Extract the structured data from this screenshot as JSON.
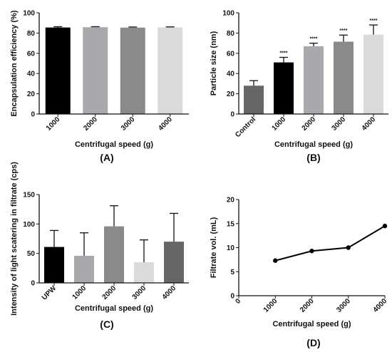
{
  "chart_data": [
    {
      "type": "bar",
      "panel_label": "(A)",
      "categories": [
        "1000",
        "2000",
        "3000",
        "4000"
      ],
      "values": [
        85.5,
        85.8,
        85.4,
        85.7
      ],
      "errors": [
        0.8,
        0.5,
        0.6,
        0.4
      ],
      "colors": [
        "#000000",
        "#a8a8ad",
        "#8a8a8a",
        "#dadada"
      ],
      "xlabel": "Centrifugal speed (g)",
      "ylabel": "Encapsulation efficiency (%)",
      "ylim": [
        0,
        100
      ],
      "yticks": [
        0,
        20,
        40,
        60,
        80,
        100
      ]
    },
    {
      "type": "bar",
      "panel_label": "(B)",
      "categories": [
        "Control",
        "1000",
        "2000",
        "3000",
        "4000"
      ],
      "values": [
        28,
        51,
        67,
        71.5,
        78.5
      ],
      "errors": [
        5,
        5,
        3,
        6.5,
        9.5
      ],
      "colors": [
        "#666666",
        "#000000",
        "#a8a8ad",
        "#8a8a8a",
        "#dadada"
      ],
      "annotations": [
        "",
        "****",
        "****",
        "****",
        "****"
      ],
      "xlabel": "Centrifugal speed (g)",
      "ylabel": "Particle size (nm)",
      "ylim": [
        0,
        100
      ],
      "yticks": [
        0,
        20,
        40,
        60,
        80,
        100
      ]
    },
    {
      "type": "bar",
      "panel_label": "(C)",
      "categories": [
        "UPW",
        "1000",
        "2000",
        "3000",
        "4000"
      ],
      "values": [
        61,
        46,
        96,
        35,
        70
      ],
      "errors": [
        28,
        39,
        35,
        38,
        48
      ],
      "colors": [
        "#000000",
        "#a8a8ad",
        "#8a8a8a",
        "#dadada",
        "#666666"
      ],
      "xlabel": "Centrifugal speed (g)",
      "ylabel": "Intensity of light scatering in filtrate (cps)",
      "ylim": [
        0,
        150
      ],
      "yticks": [
        0,
        50,
        100,
        150
      ]
    },
    {
      "type": "line",
      "panel_label": "(D)",
      "x": [
        1000,
        2000,
        3000,
        4000
      ],
      "y": [
        7.3,
        9.3,
        10.0,
        14.5
      ],
      "xticks": [
        "0",
        "1000",
        "2000",
        "3000",
        "4000"
      ],
      "xlabel": "Centrifugal speed (g)",
      "ylabel": "Filtrate vol. (mL)",
      "xlim": [
        0,
        4000
      ],
      "ylim": [
        0,
        20
      ],
      "yticks": [
        0,
        5,
        10,
        15,
        20
      ]
    }
  ]
}
